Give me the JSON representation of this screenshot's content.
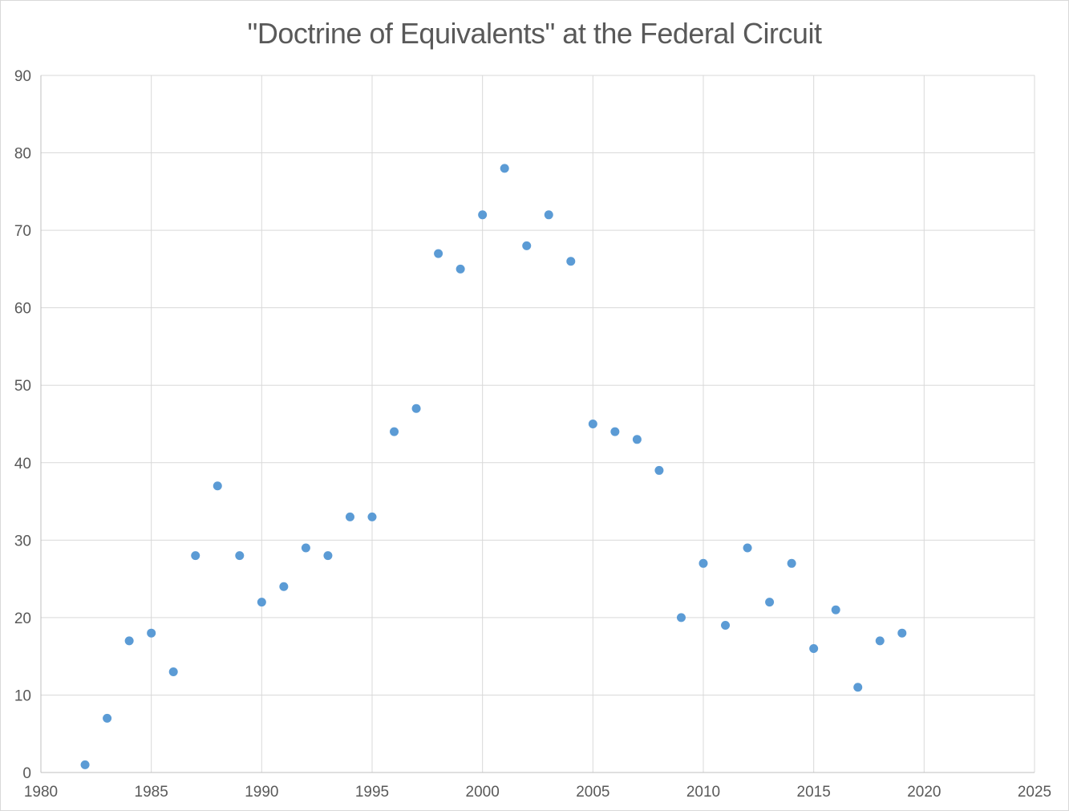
{
  "chart_data": {
    "type": "scatter",
    "title": "\"Doctrine of Equivalents\" at the Federal Circuit",
    "xlabel": "",
    "ylabel": "",
    "xlim": [
      1980,
      2025
    ],
    "ylim": [
      0,
      90
    ],
    "x_ticks": [
      1980,
      1985,
      1990,
      1995,
      2000,
      2005,
      2010,
      2015,
      2020,
      2025
    ],
    "y_ticks": [
      0,
      10,
      20,
      30,
      40,
      50,
      60,
      70,
      80,
      90
    ],
    "grid": true,
    "legend_position": "none",
    "series": [
      {
        "name": "doctrine-of-equivalents-cases",
        "x": [
          1982,
          1983,
          1984,
          1985,
          1986,
          1987,
          1988,
          1989,
          1990,
          1991,
          1992,
          1993,
          1994,
          1995,
          1996,
          1997,
          1998,
          1999,
          2000,
          2001,
          2002,
          2003,
          2004,
          2005,
          2006,
          2007,
          2008,
          2009,
          2010,
          2011,
          2012,
          2013,
          2014,
          2015,
          2016,
          2017,
          2018,
          2019
        ],
        "y": [
          1,
          7,
          17,
          18,
          13,
          28,
          37,
          28,
          22,
          24,
          29,
          28,
          33,
          33,
          44,
          47,
          67,
          65,
          72,
          78,
          68,
          72,
          66,
          45,
          44,
          43,
          39,
          20,
          27,
          19,
          29,
          22,
          27,
          16,
          21,
          11,
          17,
          18
        ]
      }
    ],
    "colors": {
      "point": "#5b9bd5",
      "grid": "#d9d9d9",
      "axis": "#bfbfbf",
      "tick_text": "#595959",
      "title_text": "#595959",
      "background": "#ffffff"
    }
  }
}
